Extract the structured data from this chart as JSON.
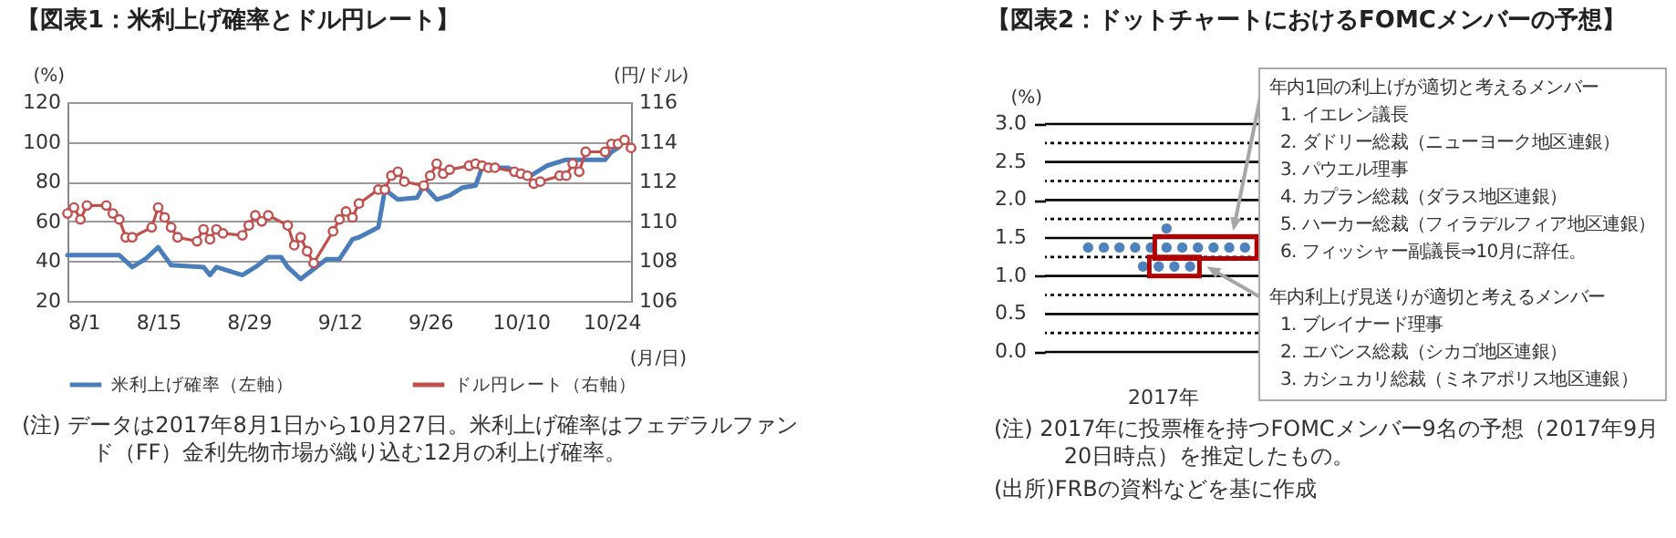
{
  "chart_data": [
    {
      "type": "line",
      "title": "【図表1：米利上げ確率とドル円レート】",
      "xlabel": "(月/日)",
      "ylabel": "(%)",
      "y2label": "(円/ドル)",
      "xlim": [
        "--08-01",
        "--10-27"
      ],
      "xticks": [
        {
          "value": "--08-01",
          "label": "8/1"
        },
        {
          "value": "--08-15",
          "label": "8/15"
        },
        {
          "value": "--08-29",
          "label": "8/29"
        },
        {
          "value": "--09-12",
          "label": "9/12"
        },
        {
          "value": "--09-26",
          "label": "9/26"
        },
        {
          "value": "--10-10",
          "label": "10/10"
        },
        {
          "value": "--10-24",
          "label": "10/24"
        }
      ],
      "ylim": [
        20,
        120
      ],
      "yticks": [
        20,
        40,
        60,
        80,
        100,
        120
      ],
      "y2lim": [
        106,
        116
      ],
      "y2ticks": [
        106,
        108,
        110,
        112,
        114,
        116
      ],
      "grid": "y",
      "legend": "bottom",
      "series": [
        {
          "name": "米利上げ確率（左軸）",
          "color": "#4a7ebb",
          "marker": "none",
          "x": [
            "--08-01",
            "--08-09",
            "--08-11",
            "--08-13",
            "--08-15",
            "--08-17",
            "--08-22",
            "--08-23",
            "--08-24",
            "--08-28",
            "--08-30",
            "--09-01",
            "--09-03",
            "--09-04",
            "--09-06",
            "--09-10",
            "--09-12",
            "--09-14",
            "--09-15",
            "--09-18",
            "--09-19",
            "--09-21",
            "--09-24",
            "--09-25",
            "--09-27",
            "--09-29",
            "--10-01",
            "--10-03",
            "--10-04",
            "--10-08",
            "--10-11",
            "--10-14",
            "--10-17",
            "--10-23",
            "--10-24",
            "--10-25"
          ],
          "values": [
            43,
            43,
            37,
            41,
            47,
            38,
            37,
            33,
            37,
            33,
            37,
            42,
            42,
            37,
            31,
            41,
            41,
            51,
            52,
            57,
            76,
            71,
            72,
            78,
            71,
            73,
            77,
            78,
            87,
            87,
            82,
            88,
            91,
            91,
            95,
            97
          ]
        },
        {
          "name": "ドル円レート（右軸）",
          "color": "#c0504d",
          "marker": "circle",
          "axis": "y2",
          "x": [
            "--08-01",
            "--08-02",
            "--08-03",
            "--08-04",
            "--08-07",
            "--08-08",
            "--08-09",
            "--08-10",
            "--08-11",
            "--08-14",
            "--08-15",
            "--08-16",
            "--08-17",
            "--08-18",
            "--08-21",
            "--08-22",
            "--08-23",
            "--08-24",
            "--08-25",
            "--08-28",
            "--08-29",
            "--08-30",
            "--08-31",
            "--09-01",
            "--09-04",
            "--09-05",
            "--09-06",
            "--09-07",
            "--09-08",
            "--09-11",
            "--09-12",
            "--09-13",
            "--09-14",
            "--09-15",
            "--09-18",
            "--09-19",
            "--09-20",
            "--09-21",
            "--09-22",
            "--09-25",
            "--09-26",
            "--09-27",
            "--09-28",
            "--09-29",
            "--10-02",
            "--10-03",
            "--10-04",
            "--10-05",
            "--10-06",
            "--10-09",
            "--10-10",
            "--10-11",
            "--10-12",
            "--10-13",
            "--10-16",
            "--10-17",
            "--10-18",
            "--10-19",
            "--10-20",
            "--10-23",
            "--10-24",
            "--10-25",
            "--10-26",
            "--10-27"
          ],
          "values": [
            110.4,
            110.7,
            110.1,
            110.8,
            110.8,
            110.4,
            110.1,
            109.2,
            109.2,
            109.7,
            110.7,
            110.2,
            109.7,
            109.2,
            109.0,
            109.6,
            109.1,
            109.6,
            109.4,
            109.3,
            109.8,
            110.3,
            110.0,
            110.3,
            109.8,
            108.8,
            109.2,
            108.5,
            107.9,
            109.5,
            110.1,
            110.5,
            110.2,
            110.9,
            111.6,
            111.6,
            112.3,
            112.5,
            112.0,
            111.8,
            112.3,
            112.9,
            112.4,
            112.6,
            112.8,
            112.9,
            112.8,
            112.7,
            112.7,
            112.5,
            112.4,
            112.3,
            111.9,
            112.0,
            112.3,
            112.3,
            112.9,
            112.5,
            113.5,
            113.5,
            113.9,
            113.9,
            114.1,
            113.7
          ]
        }
      ],
      "annotations": [
        "(注) データは2017年8月1日から10月27日。米利上げ確率はフェデラルファンド（FF）金利先物市場が織り込む12月の利上げ確率。"
      ]
    },
    {
      "type": "scatter",
      "title": "【図表2：ドットチャートにおけるFOMCメンバーの予想】",
      "xlabel": "2017年",
      "ylabel": "(%)",
      "categories": [
        null,
        null,
        null,
        null,
        null,
        null,
        null,
        null,
        null,
        null,
        null,
        null,
        null,
        null,
        null,
        null,
        null,
        null,
        null,
        null,
        null,
        null,
        null,
        null,
        null,
        null,
        null,
        null,
        null,
        null
      ],
      "ylim": [
        0,
        3
      ],
      "yticks": [
        {
          "value": 0,
          "label": "0.0"
        },
        {
          "value": 0.25,
          "label": null
        },
        0.5,
        {
          "value": 0.75,
          "label": null
        },
        {
          "value": 1,
          "label": "1.0"
        },
        {
          "value": 1.25,
          "label": null
        },
        1.5,
        {
          "value": 1.75,
          "label": null
        },
        {
          "value": 2,
          "label": "2.0"
        },
        {
          "value": 2.25,
          "label": null
        },
        2.5,
        {
          "value": 2.75,
          "label": null
        },
        {
          "value": 3,
          "label": "3.0"
        }
      ],
      "grid": "y",
      "marker": "circle",
      "series": [
        {
          "color": "#4f81bd",
          "values": [
            null,
            null,
            null,
            null,
            null,
            1.375,
            null,
            1.375,
            null,
            1.375,
            null,
            1.375,
            null,
            1.375,
            null,
            1.375,
            null,
            1.375,
            null,
            1.375,
            null,
            1.375,
            null,
            1.375,
            null,
            1.375,
            null,
            null,
            null,
            null
          ]
        },
        {
          "color": "#4f81bd",
          "values": [
            null,
            null,
            null,
            null,
            null,
            null,
            null,
            null,
            null,
            null,
            null,
            null,
            null,
            null,
            null,
            1.625,
            null,
            null,
            null,
            null,
            null,
            null,
            null,
            null,
            null,
            null,
            null,
            null,
            null,
            null
          ]
        },
        {
          "color": "#4f81bd",
          "values": [
            null,
            null,
            null,
            null,
            null,
            null,
            null,
            null,
            null,
            null,
            null,
            null,
            1.125,
            null,
            1.125,
            null,
            1.125,
            null,
            1.125,
            null,
            null,
            null,
            null,
            null,
            null,
            null,
            null,
            null,
            null,
            null
          ]
        }
      ],
      "annotations": [
        "(注) 2017年に投票権を持つFOMCメンバー9名の予想（2017年9月20日時点）を推定したもの。",
        "(出所)FRBの資料などを基に作成",
        "年内1回の利上げが適切と考えるメンバー",
        "1. イエレン議長",
        "2. ダドリー総裁（ニューヨーク地区連銀）",
        "3. パウエル理事",
        "4. カプラン総裁（ダラス地区連銀）",
        "5. ハーカー総裁（フィラデルフィア地区連銀）",
        "6. フィッシャー副議長⇒10月に辞任。",
        "年内利上げ見送りが適切と考えるメンバー",
        "1. ブレイナード理事",
        "2. エバンス総裁（シカゴ地区連銀）",
        "3. カシュカリ総裁（ミネアポリス地区連銀）"
      ]
    }
  ]
}
